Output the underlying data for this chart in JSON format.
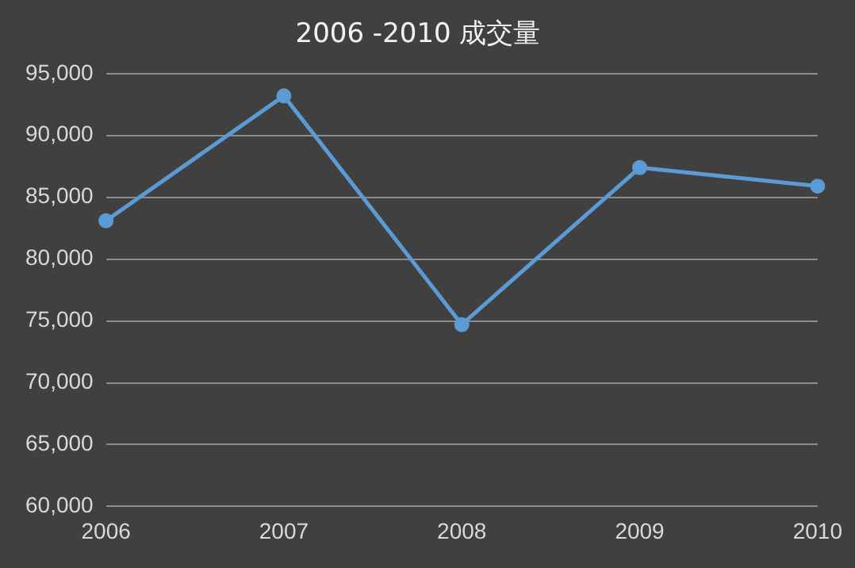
{
  "chart_data": {
    "type": "line",
    "title": "2006 -2010 成交量",
    "categories": [
      "2006",
      "2007",
      "2008",
      "2009",
      "2010"
    ],
    "series": [
      {
        "color": "#5b9bd5",
        "values": [
          83100,
          93200,
          74700,
          87400,
          85900
        ]
      }
    ],
    "ylim": [
      60000,
      95000
    ],
    "yticks": [
      {
        "value": 60000,
        "label": "60,000"
      },
      {
        "value": 65000,
        "label": "65,000"
      },
      {
        "value": 70000,
        "label": "70,000"
      },
      {
        "value": 75000,
        "label": "75,000"
      },
      {
        "value": 80000,
        "label": "80,000"
      },
      {
        "value": 85000,
        "label": "85,000"
      },
      {
        "value": 90000,
        "label": "90,000"
      },
      {
        "value": 95000,
        "label": "95,000"
      }
    ],
    "grid": "y",
    "legend": false,
    "marker": "circle",
    "line_style": "solid"
  }
}
